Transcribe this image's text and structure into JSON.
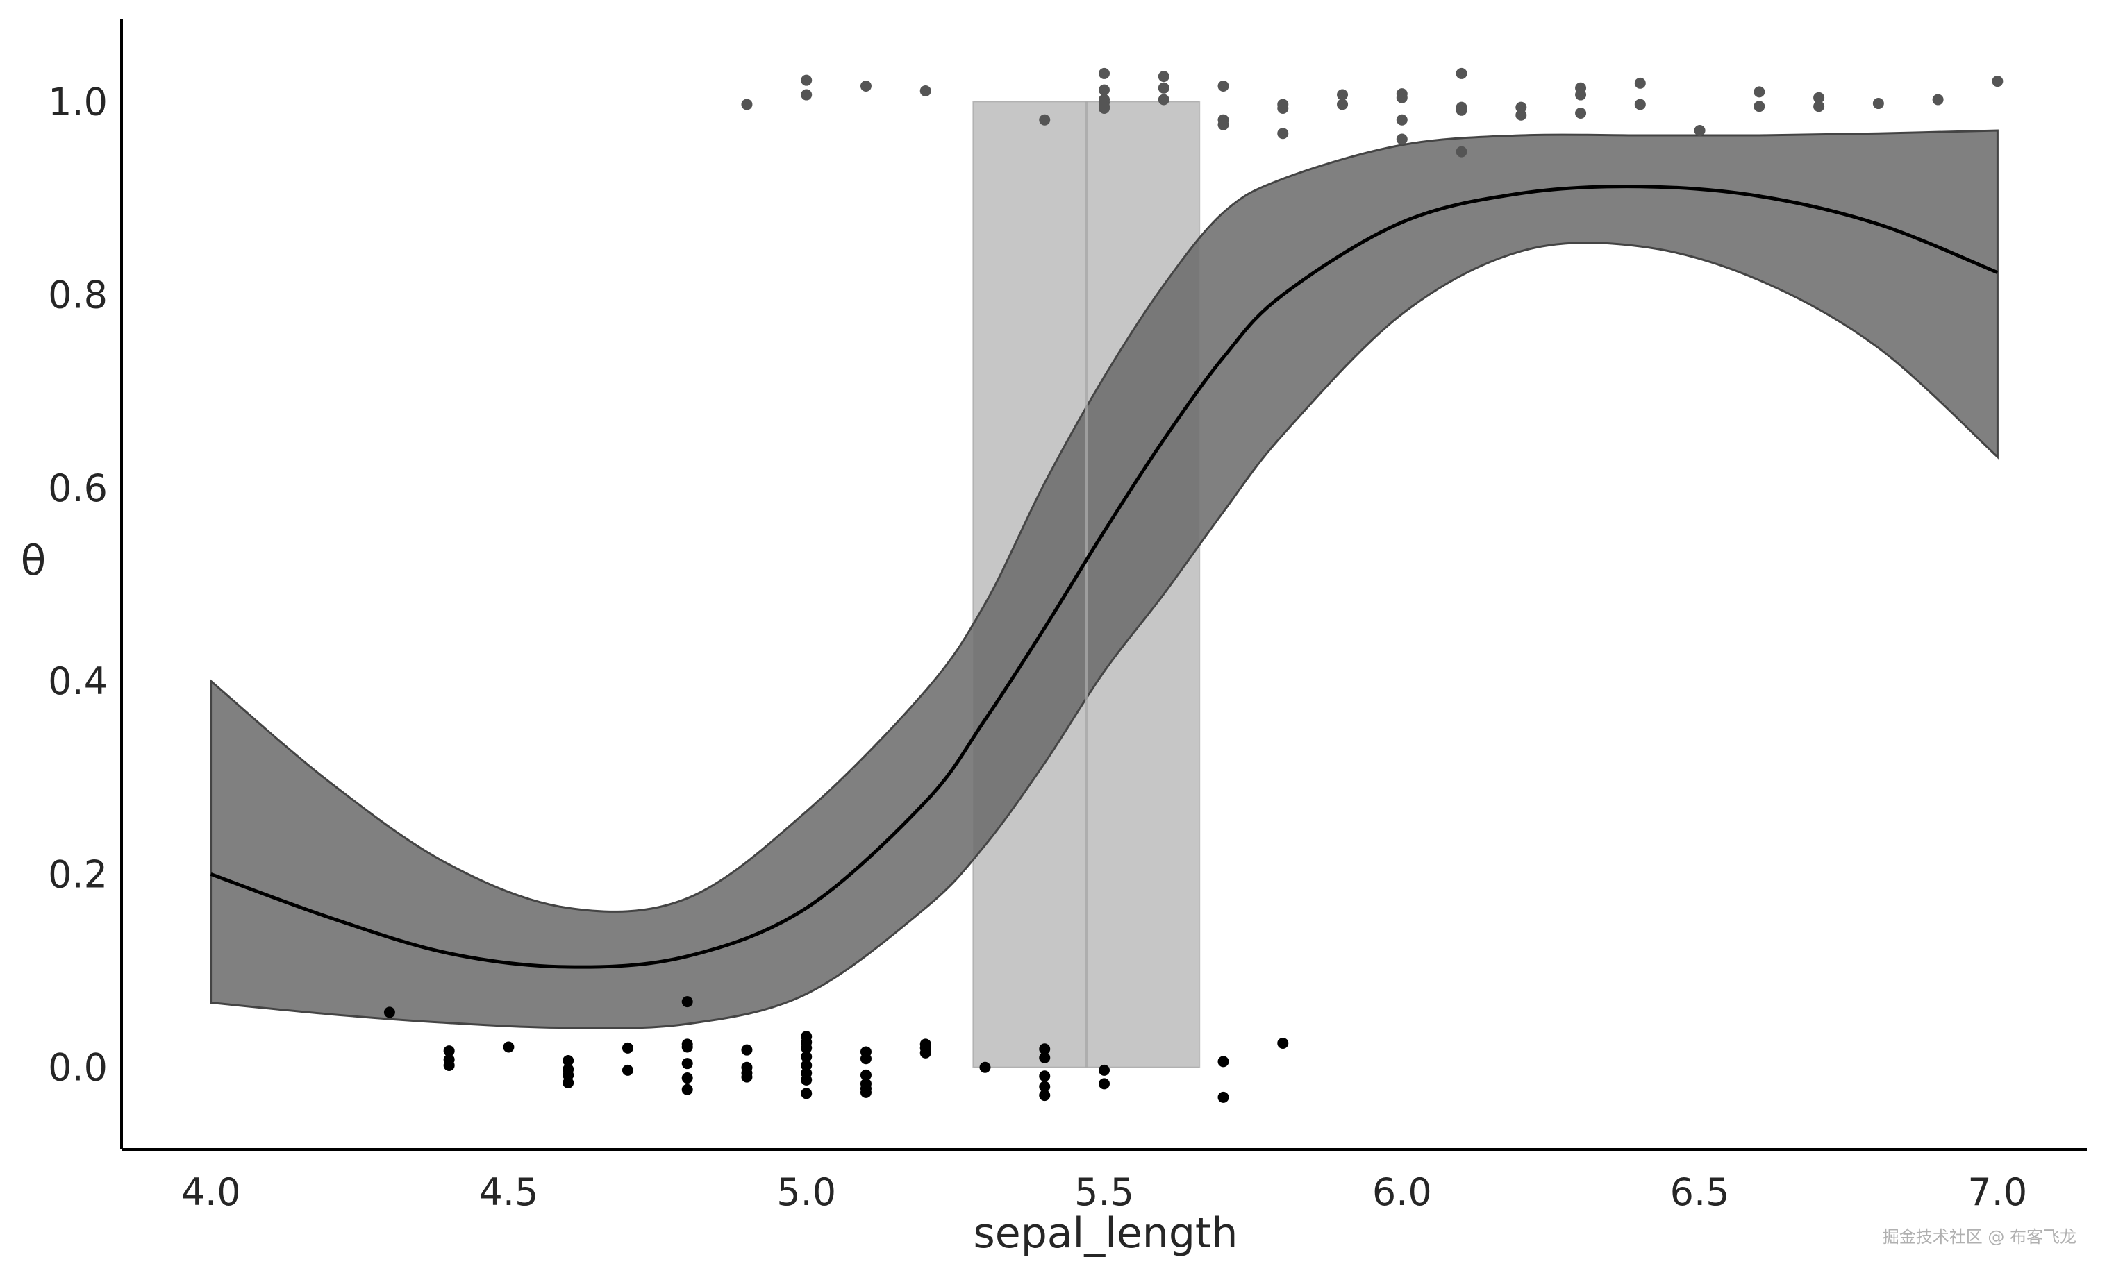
{
  "chart_data": {
    "type": "line",
    "title": "",
    "xlabel": "sepal_length",
    "ylabel": "θ",
    "xlim": [
      3.85,
      7.15
    ],
    "ylim": [
      -0.085,
      1.085
    ],
    "grid": false,
    "x_ticks": [
      4.0,
      4.5,
      5.0,
      5.5,
      6.0,
      6.5,
      7.0
    ],
    "x_tick_labels": [
      "4.0",
      "4.5",
      "5.0",
      "5.5",
      "6.0",
      "6.5",
      "7.0"
    ],
    "y_ticks": [
      0.0,
      0.2,
      0.4,
      0.6,
      0.8,
      1.0
    ],
    "y_tick_labels": [
      "0.0",
      "0.2",
      "0.4",
      "0.6",
      "0.8",
      "1.0"
    ],
    "colors": {
      "mean_line": "#000000",
      "band": "#808080",
      "band_edge": "#444444",
      "boundary_region": "#d3d3d3",
      "boundary_line": "#a8a8a8",
      "points_class0": "#000000",
      "points_class1": "#555555",
      "axis": "#000000"
    },
    "series": [
      {
        "type": "line",
        "x": [
          4.0,
          4.2,
          4.4,
          4.6,
          4.8,
          5.0,
          5.2,
          5.3,
          5.4,
          5.5,
          5.6,
          5.7,
          5.8,
          6.0,
          6.2,
          6.4,
          6.6,
          6.8,
          7.0
        ],
        "y": [
          0.2,
          0.155,
          0.118,
          0.104,
          0.115,
          0.165,
          0.275,
          0.36,
          0.455,
          0.555,
          0.65,
          0.735,
          0.8,
          0.875,
          0.905,
          0.912,
          0.902,
          0.873,
          0.823
        ]
      },
      {
        "type": "band",
        "x": [
          4.0,
          4.2,
          4.4,
          4.6,
          4.8,
          5.0,
          5.2,
          5.3,
          5.4,
          5.5,
          5.6,
          5.7,
          5.8,
          6.0,
          6.2,
          6.4,
          6.6,
          6.8,
          7.0
        ],
        "lower": [
          0.067,
          0.055,
          0.046,
          0.041,
          0.045,
          0.076,
          0.165,
          0.23,
          0.315,
          0.41,
          0.49,
          0.575,
          0.655,
          0.78,
          0.845,
          0.85,
          0.815,
          0.745,
          0.632
        ],
        "upper": [
          0.4,
          0.295,
          0.21,
          0.165,
          0.175,
          0.265,
          0.39,
          0.48,
          0.605,
          0.715,
          0.81,
          0.885,
          0.92,
          0.955,
          0.965,
          0.965,
          0.965,
          0.967,
          0.97
        ]
      },
      {
        "type": "vspan",
        "x": [
          5.28,
          5.66
        ],
        "y": [
          0.0,
          1.0
        ]
      },
      {
        "type": "vline",
        "x": 5.47
      },
      {
        "type": "scatter",
        "name": "class0",
        "x": [
          4.3,
          4.4,
          4.4,
          4.4,
          4.5,
          4.6,
          4.6,
          4.6,
          4.6,
          4.7,
          4.7,
          4.8,
          4.8,
          4.8,
          4.8,
          4.8,
          4.8,
          4.9,
          4.9,
          4.9,
          4.9,
          5.0,
          5.0,
          5.0,
          5.0,
          5.0,
          5.0,
          5.0,
          5.0,
          5.1,
          5.1,
          5.1,
          5.1,
          5.1,
          5.1,
          5.2,
          5.2,
          5.2,
          5.3,
          5.4,
          5.4,
          5.4,
          5.4,
          5.4,
          5.5,
          5.5,
          5.7,
          5.7,
          5.8
        ],
        "y": [
          0.057,
          0.017,
          0.008,
          0.002,
          0.021,
          0.007,
          -0.002,
          -0.008,
          -0.016,
          0.02,
          -0.003,
          0.068,
          0.024,
          0.004,
          -0.011,
          -0.023,
          0.021,
          0.018,
          0.0,
          -0.006,
          -0.01,
          0.032,
          0.026,
          0.02,
          0.011,
          0.002,
          -0.006,
          -0.013,
          -0.027,
          0.016,
          0.009,
          -0.008,
          -0.017,
          -0.022,
          -0.026,
          0.024,
          0.02,
          0.015,
          0.0,
          0.019,
          0.01,
          -0.009,
          -0.02,
          -0.029,
          -0.003,
          -0.017,
          0.006,
          -0.031,
          0.025
        ]
      },
      {
        "type": "scatter",
        "name": "class1",
        "x": [
          4.9,
          5.0,
          5.0,
          5.1,
          5.2,
          5.4,
          5.5,
          5.5,
          5.5,
          5.5,
          5.5,
          5.5,
          5.6,
          5.6,
          5.6,
          5.7,
          5.7,
          5.7,
          5.8,
          5.8,
          5.8,
          5.9,
          5.9,
          6.0,
          6.0,
          6.0,
          6.0,
          6.1,
          6.1,
          6.1,
          6.1,
          6.2,
          6.2,
          6.3,
          6.3,
          6.3,
          6.4,
          6.4,
          6.5,
          6.6,
          6.6,
          6.7,
          6.7,
          6.8,
          6.9,
          7.0
        ],
        "y": [
          0.997,
          1.022,
          1.007,
          1.016,
          1.011,
          0.981,
          1.029,
          1.012,
          1.002,
          0.999,
          0.995,
          0.993,
          1.026,
          1.014,
          1.002,
          1.016,
          0.981,
          0.976,
          0.997,
          0.993,
          0.967,
          1.007,
          0.997,
          1.008,
          1.004,
          0.981,
          0.961,
          1.029,
          0.994,
          0.991,
          0.948,
          0.994,
          0.986,
          1.014,
          1.007,
          0.988,
          1.019,
          0.997,
          0.97,
          1.01,
          0.995,
          1.004,
          0.995,
          0.998,
          1.002,
          1.021
        ]
      }
    ]
  },
  "watermark": "掘金技术社区 @ 布客飞龙"
}
